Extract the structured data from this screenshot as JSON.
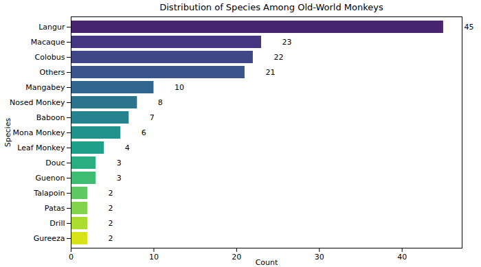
{
  "chart_data": {
    "type": "bar",
    "orientation": "horizontal",
    "title": "Distribution of Species Among Old-World Monkeys",
    "x_label": "Count",
    "y_label": "Species",
    "categories": [
      "Langur",
      "Macaque",
      "Colobus",
      "Others",
      "Mangabey",
      "Nosed Monkey",
      "Baboon",
      "Mona Monkey",
      "Leaf Monkey",
      "Douc",
      "Guenon",
      "Talapoin",
      "Patas",
      "Drill",
      "Gureeza"
    ],
    "values": [
      45,
      23,
      22,
      21,
      10,
      8,
      7,
      6,
      4,
      3,
      3,
      2,
      2,
      2,
      2
    ],
    "colors": [
      "#46246e",
      "#453781",
      "#3f4788",
      "#39558c",
      "#32658e",
      "#2c738e",
      "#26828e",
      "#21918c",
      "#1fa088",
      "#28ae80",
      "#3fbc73",
      "#5ec962",
      "#84d44b",
      "#addc30",
      "#d8e219"
    ],
    "xlim": [
      0,
      47.25
    ],
    "xticks": [
      0,
      10,
      20,
      30,
      40
    ],
    "grid": false,
    "data_labels": true
  }
}
